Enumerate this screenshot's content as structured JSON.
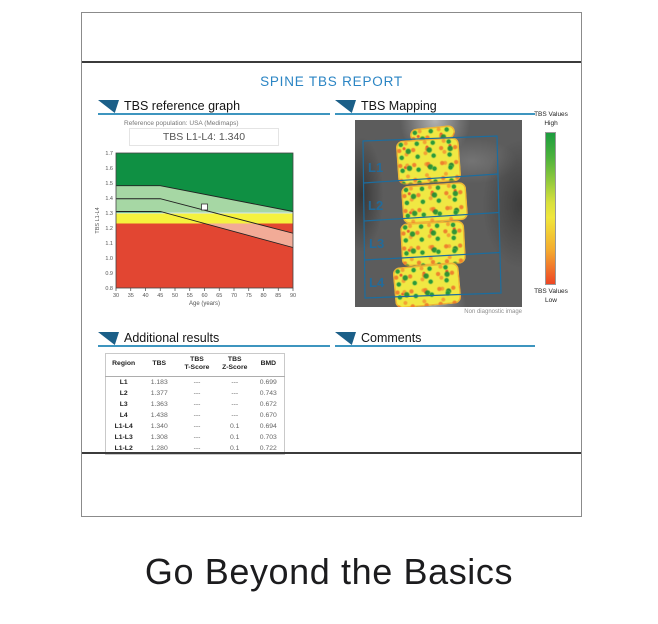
{
  "page": {
    "title": "SPINE TBS  REPORT",
    "tagline": "Go Beyond the Basics"
  },
  "sections": {
    "reference_graph": {
      "label": "TBS reference graph",
      "subtitle": "Reference population: USA (Medimaps)",
      "value_label": "TBS  L1-L4: 1.340"
    },
    "mapping": {
      "label": "TBS Mapping",
      "caption": "Non diagnostic image",
      "regions": [
        "L1",
        "L2",
        "L3",
        "L4"
      ],
      "legend_high_line1": "TBS Values",
      "legend_high_line2": "High",
      "legend_low_line1": "TBS Values",
      "legend_low_line2": "Low"
    },
    "additional_results": {
      "label": "Additional results"
    },
    "comments": {
      "label": "Comments"
    }
  },
  "results_table": {
    "headers": [
      [
        "Region"
      ],
      [
        "TBS"
      ],
      [
        "TBS",
        "T-Score"
      ],
      [
        "TBS",
        "Z-Score"
      ],
      [
        "BMD"
      ]
    ],
    "rows": [
      [
        "L1",
        "1.183",
        "---",
        "---",
        "0.699"
      ],
      [
        "L2",
        "1.377",
        "---",
        "---",
        "0.743"
      ],
      [
        "L3",
        "1.363",
        "---",
        "---",
        "0.672"
      ],
      [
        "L4",
        "1.438",
        "---",
        "---",
        "0.670"
      ],
      [
        "L1-L4",
        "1.340",
        "---",
        "0.1",
        "0.694"
      ],
      [
        "L1-L3",
        "1.308",
        "---",
        "0.1",
        "0.703"
      ],
      [
        "L1-L2",
        "1.280",
        "---",
        "0.1",
        "0.722"
      ]
    ]
  },
  "chart_data": {
    "type": "area",
    "title": "TBS  L1-L4: 1.340",
    "xlabel": "Age (years)",
    "ylabel": "TBS L1-L4",
    "xlim": [
      30,
      90
    ],
    "ylim": [
      0.8,
      1.7
    ],
    "x_ticks": [
      30,
      35,
      40,
      45,
      50,
      55,
      60,
      65,
      70,
      75,
      80,
      85,
      90
    ],
    "y_tick_labels": [
      "0.8",
      "0.9",
      "1.0",
      "1.1",
      "1.2",
      "1.3",
      "1.4",
      "1.5",
      "1.6",
      "1.7"
    ],
    "zones": {
      "normal_green_above": 1.3,
      "partially_degraded_yellow": [
        1.23,
        1.3
      ],
      "degraded_red_below": 1.23
    },
    "reference_band": {
      "x": [
        30,
        45,
        90
      ],
      "upper": [
        1.48,
        1.48,
        1.31
      ],
      "mean": [
        1.395,
        1.395,
        1.165
      ],
      "lower": [
        1.31,
        1.31,
        1.07
      ]
    },
    "patient_point": {
      "age": 60,
      "tbs": 1.34
    },
    "colors": {
      "dark_green": "#0f9043",
      "light_green": "#a6d7a4",
      "yellow": "#f5f23e",
      "salmon": "#f2ab97",
      "red": "#e24632",
      "marker": "#ffffff"
    },
    "legend_position": "none",
    "grid": false
  }
}
